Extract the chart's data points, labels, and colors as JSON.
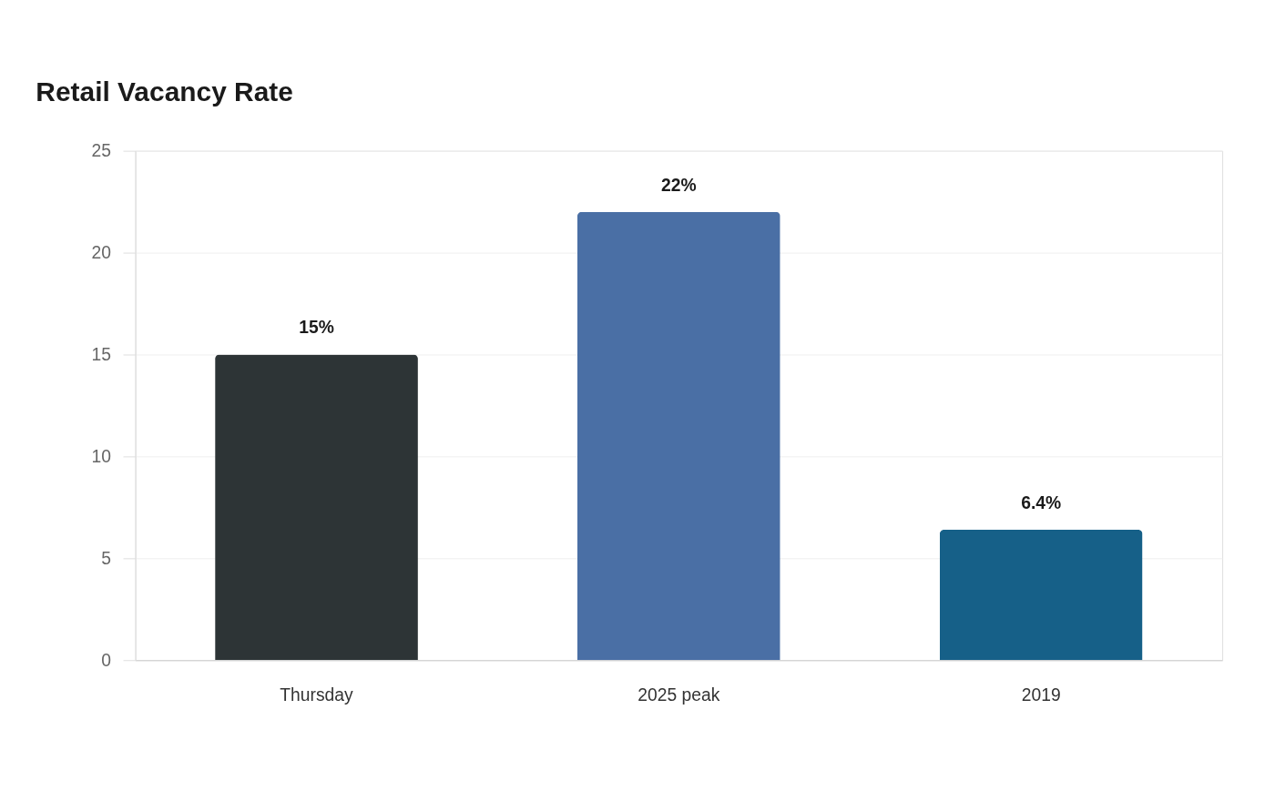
{
  "chart_data": {
    "type": "bar",
    "title": "Retail Vacancy Rate",
    "categories": [
      "Thursday",
      "2025 peak",
      "2019"
    ],
    "values": [
      15,
      22,
      6.4
    ],
    "colors": [
      "#2d3436",
      "#4a6fa5",
      "#166088"
    ],
    "value_labels": [
      "15%",
      "22%",
      "6.4%"
    ],
    "ylim": [
      0,
      25
    ],
    "yticks": [
      0,
      5,
      10,
      15,
      20,
      25
    ],
    "grid": "y",
    "legend": false
  }
}
